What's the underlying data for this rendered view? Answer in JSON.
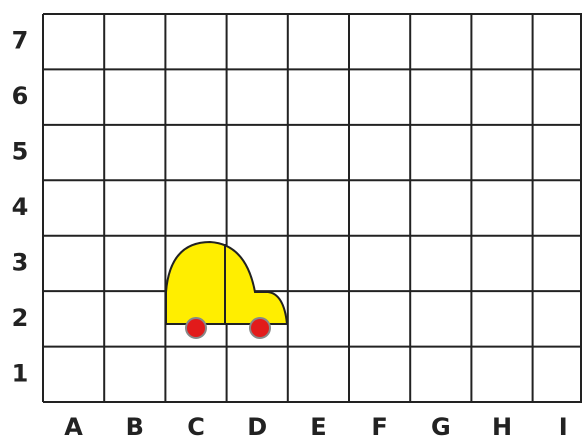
{
  "columns": [
    "A",
    "B",
    "C",
    "D",
    "E",
    "F",
    "G",
    "H",
    "I"
  ],
  "rows": [
    "7",
    "6",
    "5",
    "4",
    "3",
    "2",
    "1"
  ]
}
